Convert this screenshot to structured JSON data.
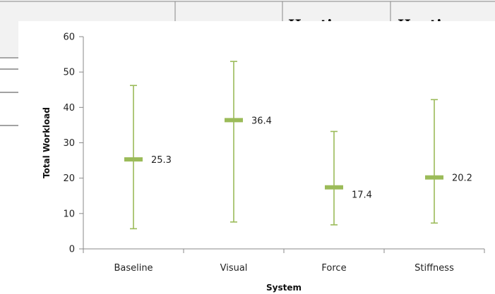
{
  "table_header": {
    "col3": "Haptic",
    "col4": "Haptic"
  },
  "chart_data": {
    "type": "error-bar",
    "categories": [
      "Baseline",
      "Visual",
      "Force",
      "Stiffness"
    ],
    "series": [
      {
        "values": [
          25.3,
          36.4,
          17.4,
          20.2
        ],
        "low": [
          5.7,
          7.6,
          6.8,
          7.3
        ],
        "high": [
          46.2,
          53.0,
          33.2,
          42.2
        ]
      }
    ],
    "value_labels": [
      "25.3",
      "36.4",
      "17.4",
      "20.2"
    ],
    "xlabel": "System",
    "ylabel": "Total Workload",
    "ylim": [
      0,
      60
    ],
    "yticks": [
      0,
      10,
      20,
      30,
      40,
      50,
      60
    ],
    "grid": false,
    "colors": {
      "series": "#9bbb59",
      "axis": "#888888"
    }
  }
}
